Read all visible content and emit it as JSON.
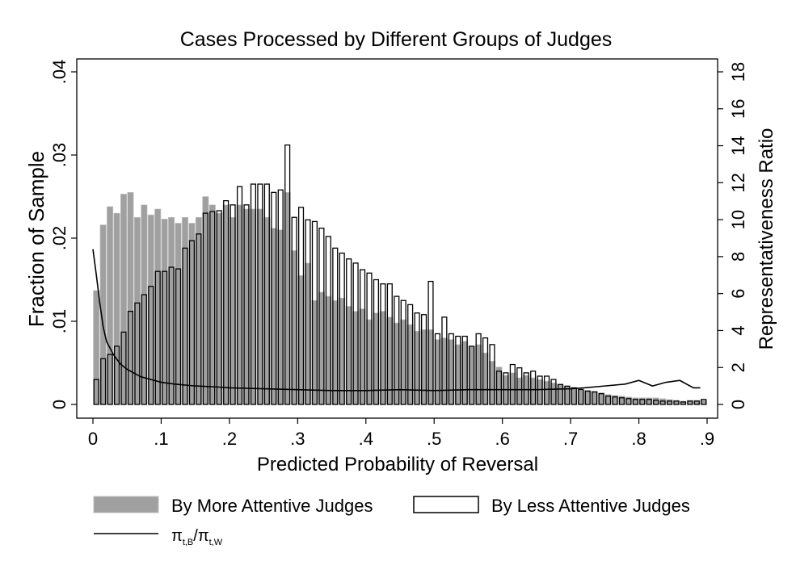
{
  "chart_data": {
    "type": "bar",
    "title": "Cases Processed by Different Groups of Judges",
    "xlabel": "Predicted Probability of Reversal",
    "ylabel": "Fraction of Sample",
    "y2label": "Representativeness Ratio",
    "xlim": [
      0,
      0.9
    ],
    "ylim": [
      0,
      0.04
    ],
    "y2lim": [
      0,
      18
    ],
    "x_ticks": [
      {
        "v": 0,
        "label": "0"
      },
      {
        "v": 0.1,
        "label": ".1"
      },
      {
        "v": 0.2,
        "label": ".2"
      },
      {
        "v": 0.3,
        "label": ".3"
      },
      {
        "v": 0.4,
        "label": ".4"
      },
      {
        "v": 0.5,
        "label": ".5"
      },
      {
        "v": 0.6,
        "label": ".6"
      },
      {
        "v": 0.7,
        "label": ".7"
      },
      {
        "v": 0.8,
        "label": ".8"
      },
      {
        "v": 0.9,
        "label": ".9"
      }
    ],
    "y_ticks": [
      {
        "v": 0,
        "label": "0"
      },
      {
        "v": 0.01,
        "label": ".01"
      },
      {
        "v": 0.02,
        "label": ".02"
      },
      {
        "v": 0.03,
        "label": ".03"
      },
      {
        "v": 0.04,
        "label": ".04"
      }
    ],
    "y2_ticks": [
      {
        "v": 0,
        "label": "0"
      },
      {
        "v": 2,
        "label": "2"
      },
      {
        "v": 4,
        "label": "4"
      },
      {
        "v": 6,
        "label": "6"
      },
      {
        "v": 8,
        "label": "8"
      },
      {
        "v": 10,
        "label": "10"
      },
      {
        "v": 12,
        "label": "12"
      },
      {
        "v": 14,
        "label": "14"
      },
      {
        "v": 16,
        "label": "16"
      },
      {
        "v": 18,
        "label": "18"
      }
    ],
    "bin_width": 0.01,
    "x": [
      0.005,
      0.015,
      0.025,
      0.035,
      0.045,
      0.055,
      0.065,
      0.075,
      0.085,
      0.095,
      0.105,
      0.115,
      0.125,
      0.135,
      0.145,
      0.155,
      0.165,
      0.175,
      0.185,
      0.195,
      0.205,
      0.215,
      0.225,
      0.235,
      0.245,
      0.255,
      0.265,
      0.275,
      0.285,
      0.295,
      0.305,
      0.315,
      0.325,
      0.335,
      0.345,
      0.355,
      0.365,
      0.375,
      0.385,
      0.395,
      0.405,
      0.415,
      0.425,
      0.435,
      0.445,
      0.455,
      0.465,
      0.475,
      0.485,
      0.495,
      0.505,
      0.515,
      0.525,
      0.535,
      0.545,
      0.555,
      0.565,
      0.575,
      0.585,
      0.595,
      0.605,
      0.615,
      0.625,
      0.635,
      0.645,
      0.655,
      0.665,
      0.675,
      0.685,
      0.695,
      0.705,
      0.715,
      0.725,
      0.735,
      0.745,
      0.755,
      0.765,
      0.775,
      0.785,
      0.795,
      0.805,
      0.815,
      0.825,
      0.835,
      0.845,
      0.855,
      0.865,
      0.875,
      0.885,
      0.895
    ],
    "series": [
      {
        "name": "By More Attentive Judges",
        "fill": "#a0a0a0",
        "values": [
          0.0137,
          0.0216,
          0.0238,
          0.023,
          0.0253,
          0.0255,
          0.0225,
          0.024,
          0.0228,
          0.0235,
          0.0223,
          0.0225,
          0.0218,
          0.0225,
          0.0218,
          0.0225,
          0.025,
          0.024,
          0.023,
          0.024,
          0.0225,
          0.024,
          0.0235,
          0.0235,
          0.0235,
          0.0225,
          0.0212,
          0.021,
          0.0255,
          0.0185,
          0.0155,
          0.017,
          0.0125,
          0.0135,
          0.013,
          0.0125,
          0.0128,
          0.0118,
          0.0112,
          0.0115,
          0.0102,
          0.011,
          0.0112,
          0.0105,
          0.0098,
          0.0102,
          0.0096,
          0.0088,
          0.009,
          0.009,
          0.0078,
          0.008,
          0.0078,
          0.0072,
          0.0076,
          0.007,
          0.0072,
          0.0062,
          0.0052,
          0.0045,
          0.0035,
          0.0038,
          0.0032,
          0.0035,
          0.0032,
          0.003,
          0.0028,
          0.0026,
          0.0024,
          0.0022,
          0.002,
          0.0018,
          0.0017,
          0.0016,
          0.0014,
          0.0012,
          0.0011,
          0.001,
          0.0009,
          0.0008,
          0.0008,
          0.0008,
          0.0008,
          0.0007,
          0.0006,
          0.0005,
          0.0004,
          0.0005,
          0.0005,
          0.0005
        ]
      },
      {
        "name": "By Less Attentive Judges",
        "fill": "none",
        "values": [
          0.003,
          0.0055,
          0.006,
          0.007,
          0.0087,
          0.0112,
          0.0122,
          0.0132,
          0.0142,
          0.016,
          0.016,
          0.0165,
          0.0163,
          0.0188,
          0.0197,
          0.0205,
          0.023,
          0.0232,
          0.0233,
          0.0245,
          0.024,
          0.0262,
          0.024,
          0.0265,
          0.0265,
          0.0265,
          0.0255,
          0.0258,
          0.0312,
          0.0225,
          0.0237,
          0.0222,
          0.022,
          0.0212,
          0.0202,
          0.0188,
          0.0182,
          0.0175,
          0.017,
          0.0162,
          0.0158,
          0.015,
          0.0145,
          0.0145,
          0.013,
          0.0125,
          0.012,
          0.011,
          0.0108,
          0.0148,
          0.0085,
          0.0105,
          0.0085,
          0.0082,
          0.0082,
          0.007,
          0.0085,
          0.008,
          0.0072,
          0.004,
          0.0038,
          0.0048,
          0.0044,
          0.0038,
          0.004,
          0.0034,
          0.0034,
          0.003,
          0.0024,
          0.0022,
          0.002,
          0.0018,
          0.0016,
          0.0015,
          0.0013,
          0.001,
          0.0009,
          0.0008,
          0.0007,
          0.0006,
          0.0006,
          0.0006,
          0.0005,
          0.0004,
          0.0004,
          0.0004,
          0.0003,
          0.0004,
          0.0004,
          0.0006
        ]
      }
    ],
    "ratio_line": {
      "name": "π_{t,B}/π_{t,W}",
      "x": [
        0.0,
        0.005,
        0.01,
        0.015,
        0.02,
        0.03,
        0.04,
        0.05,
        0.06,
        0.07,
        0.08,
        0.09,
        0.1,
        0.12,
        0.15,
        0.18,
        0.2,
        0.25,
        0.3,
        0.35,
        0.4,
        0.45,
        0.5,
        0.55,
        0.6,
        0.65,
        0.7,
        0.72,
        0.75,
        0.78,
        0.8,
        0.82,
        0.84,
        0.86,
        0.88,
        0.89
      ],
      "y": [
        8.4,
        7.0,
        5.5,
        4.2,
        3.4,
        2.7,
        2.2,
        1.9,
        1.7,
        1.5,
        1.4,
        1.3,
        1.2,
        1.1,
        1.0,
        0.95,
        0.9,
        0.85,
        0.8,
        0.75,
        0.75,
        0.8,
        0.75,
        0.8,
        0.8,
        0.8,
        0.85,
        0.9,
        1.0,
        1.1,
        1.3,
        1.0,
        1.2,
        1.3,
        0.9,
        0.9
      ]
    },
    "legend": {
      "placement": "bottom",
      "entries": [
        {
          "label": "By More Attentive Judges"
        },
        {
          "label": "By Less Attentive Judges"
        }
      ],
      "line_label_main": "π",
      "line_label_sub1": "t,B",
      "line_label_slash": "/π",
      "line_label_sub2": "t,W"
    }
  }
}
